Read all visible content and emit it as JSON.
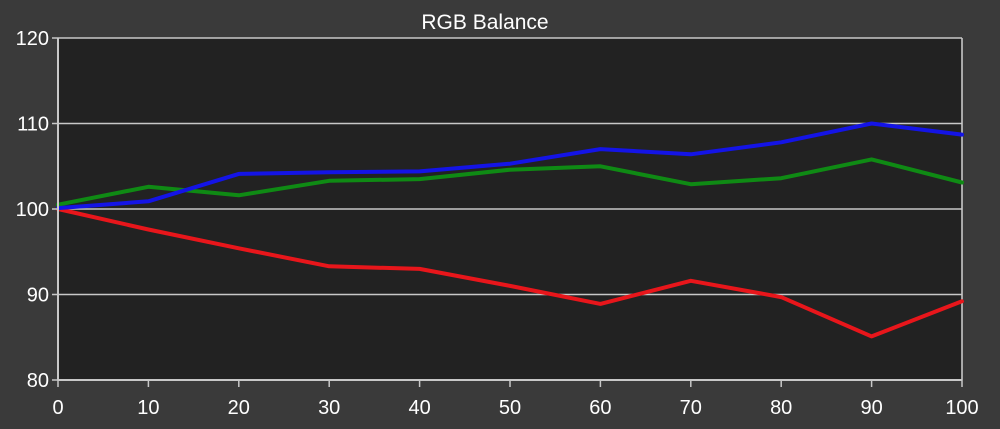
{
  "chart_data": {
    "type": "line",
    "title": "RGB Balance",
    "xlabel": "",
    "ylabel": "",
    "x": [
      0,
      10,
      20,
      30,
      40,
      50,
      60,
      70,
      80,
      90,
      100
    ],
    "xlim": [
      0,
      100
    ],
    "ylim": [
      80,
      120
    ],
    "x_ticks": [
      "0",
      "10",
      "20",
      "30",
      "40",
      "50",
      "60",
      "70",
      "80",
      "90",
      "100"
    ],
    "y_ticks": [
      "80",
      "90",
      "100",
      "110",
      "120"
    ],
    "y_tick_values": [
      80,
      90,
      100,
      110,
      120
    ],
    "grid": "horizontal",
    "legend": "none",
    "series": [
      {
        "color": "#e8161b",
        "values": [
          100.0,
          97.6,
          95.4,
          93.3,
          93.0,
          91.0,
          88.9,
          91.6,
          89.7,
          85.1,
          89.2
        ]
      },
      {
        "color": "#0f8a14",
        "values": [
          100.5,
          102.6,
          101.6,
          103.3,
          103.5,
          104.6,
          105.0,
          102.9,
          103.6,
          105.8,
          103.1
        ]
      },
      {
        "color": "#1414e6",
        "values": [
          100.1,
          100.9,
          104.1,
          104.3,
          104.4,
          105.3,
          107.0,
          106.4,
          107.8,
          110.0,
          108.7
        ]
      }
    ],
    "colors": {
      "background": "#3a3a3a",
      "plot_area": "#222222",
      "gridline": "#c8c8c8",
      "axis": "#c8c8c8",
      "text": "#ffffff"
    }
  }
}
